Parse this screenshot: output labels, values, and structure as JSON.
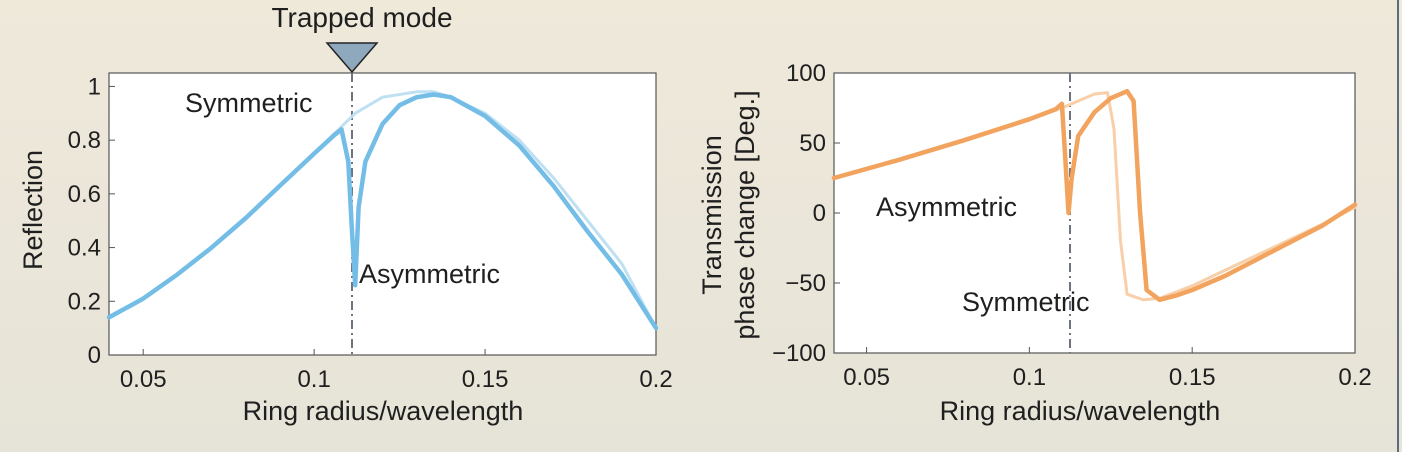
{
  "colors": {
    "background": "#ece7d9",
    "plot_bg": "#ffffff",
    "blue": "#74bde6",
    "blue_light": "#bfe0f2",
    "orange": "#f2a35d",
    "orange_light": "#f8cfa8",
    "marker": "#8ea8bd",
    "text": "#1f1f1f"
  },
  "chart_data": [
    {
      "type": "line",
      "title": "",
      "xlabel": "Ring radius/wavelength",
      "ylabel": "Reflection",
      "xlim": [
        0.04,
        0.2
      ],
      "ylim": [
        0,
        1.05
      ],
      "xticks": [
        0.05,
        0.1,
        0.15,
        0.2
      ],
      "xtick_labels": [
        "0.05",
        "0.1",
        "0.15",
        "0.2"
      ],
      "yticks": [
        0,
        0.2,
        0.4,
        0.6,
        0.8,
        1
      ],
      "ytick_labels": [
        "0",
        "0.2",
        "0.4",
        "0.6",
        "0.8",
        "1"
      ],
      "trapped_mode_x": 0.112,
      "marker_label": "Trapped mode",
      "annotations": [
        {
          "text": "Symmetric",
          "x": 0.063,
          "y": 0.93
        },
        {
          "text": "Asymmetric",
          "x": 0.115,
          "y": 0.29
        }
      ],
      "series": [
        {
          "style": "symmetric",
          "x": [
            0.04,
            0.05,
            0.06,
            0.07,
            0.08,
            0.09,
            0.1,
            0.108,
            0.112,
            0.12,
            0.13,
            0.135,
            0.14,
            0.15,
            0.16,
            0.17,
            0.18,
            0.19,
            0.2
          ],
          "y": [
            0.14,
            0.21,
            0.3,
            0.4,
            0.51,
            0.63,
            0.75,
            0.85,
            0.9,
            0.96,
            0.98,
            0.98,
            0.96,
            0.9,
            0.8,
            0.66,
            0.5,
            0.34,
            0.1
          ]
        },
        {
          "style": "asymmetric",
          "x": [
            0.04,
            0.05,
            0.06,
            0.07,
            0.08,
            0.09,
            0.1,
            0.106,
            0.108,
            0.11,
            0.111,
            0.112,
            0.113,
            0.115,
            0.12,
            0.125,
            0.13,
            0.135,
            0.14,
            0.15,
            0.16,
            0.17,
            0.18,
            0.19,
            0.2
          ],
          "y": [
            0.14,
            0.21,
            0.3,
            0.4,
            0.51,
            0.63,
            0.75,
            0.82,
            0.84,
            0.72,
            0.48,
            0.26,
            0.55,
            0.72,
            0.86,
            0.93,
            0.96,
            0.97,
            0.96,
            0.89,
            0.78,
            0.63,
            0.46,
            0.3,
            0.1
          ]
        }
      ]
    },
    {
      "type": "line",
      "title": "",
      "xlabel": "Ring radius/wavelength",
      "ylabel": [
        "Transmission",
        "phase change [Deg.]"
      ],
      "xlim": [
        0.04,
        0.2
      ],
      "ylim": [
        -100,
        100
      ],
      "xticks": [
        0.05,
        0.1,
        0.15,
        0.2
      ],
      "xtick_labels": [
        "0.05",
        "0.1",
        "0.15",
        "0.2"
      ],
      "yticks": [
        -100,
        -50,
        0,
        50,
        100
      ],
      "ytick_labels": [
        "−100",
        "−50",
        "0",
        "50",
        "100"
      ],
      "trapped_mode_x": 0.112,
      "annotations": [
        {
          "text": "Asymmetric",
          "x": 0.053,
          "y": 4
        },
        {
          "text": "Symmetric",
          "x": 0.1,
          "y": -63
        }
      ],
      "series": [
        {
          "style": "symmetric",
          "x": [
            0.04,
            0.06,
            0.08,
            0.1,
            0.11,
            0.115,
            0.12,
            0.124,
            0.126,
            0.128,
            0.13,
            0.135,
            0.14,
            0.15,
            0.16,
            0.17,
            0.18,
            0.19,
            0.2
          ],
          "y": [
            25,
            38,
            52,
            67,
            75,
            80,
            85,
            86,
            60,
            -20,
            -58,
            -62,
            -61,
            -52,
            -41,
            -30,
            -19,
            -8,
            4
          ]
        },
        {
          "style": "asymmetric",
          "x": [
            0.04,
            0.06,
            0.08,
            0.1,
            0.108,
            0.11,
            0.111,
            0.112,
            0.113,
            0.115,
            0.12,
            0.125,
            0.13,
            0.132,
            0.134,
            0.136,
            0.14,
            0.145,
            0.15,
            0.16,
            0.17,
            0.18,
            0.19,
            0.2
          ],
          "y": [
            25,
            38,
            52,
            67,
            74,
            78,
            40,
            0,
            25,
            55,
            72,
            82,
            87,
            80,
            0,
            -55,
            -62,
            -59,
            -55,
            -45,
            -33,
            -21,
            -9,
            6
          ]
        }
      ]
    }
  ]
}
